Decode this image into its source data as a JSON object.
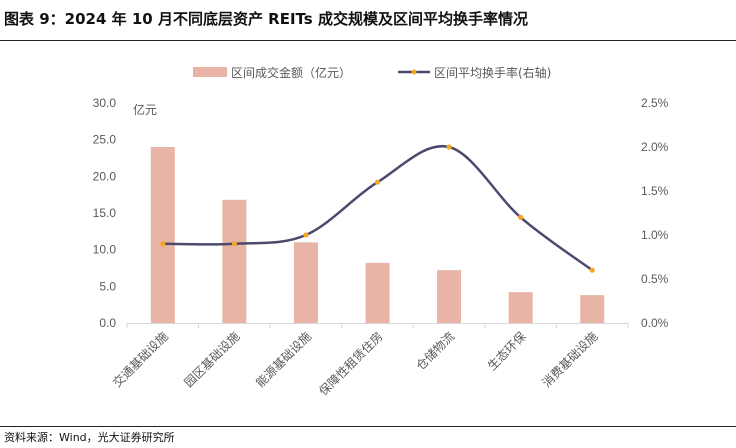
{
  "title": "图表 9：2024 年 10 月不同底层资产 REITs 成交规模及区间平均换手率情况",
  "source": "资料来源：Wind，光大证券研究所",
  "chart_data": {
    "type": "bar+line",
    "title": "",
    "categories": [
      "交通基础设施",
      "园区基础设施",
      "能源基础设施",
      "保障性租赁住房",
      "仓储物流",
      "生态环保",
      "消费基础设施"
    ],
    "series": [
      {
        "name": "区间成交金额（亿元）",
        "type": "bar",
        "axis": "left",
        "color": "#E8B4A6",
        "values": [
          24.0,
          16.8,
          11.0,
          8.2,
          7.2,
          4.2,
          3.8
        ]
      },
      {
        "name": "区间平均换手率(右轴)",
        "type": "line",
        "axis": "right",
        "color": "#4B4A6E",
        "marker_color": "#F5A623",
        "values": [
          0.9,
          0.9,
          1.0,
          1.6,
          2.0,
          1.2,
          0.6
        ]
      }
    ],
    "left_axis": {
      "unit_label": "亿元",
      "ylim": [
        0,
        30
      ],
      "ticks": [
        "0.0",
        "5.0",
        "10.0",
        "15.0",
        "20.0",
        "25.0",
        "30.0"
      ]
    },
    "right_axis": {
      "ylim": [
        0,
        2.5
      ],
      "ticks": [
        "0.0%",
        "0.5%",
        "1.0%",
        "1.5%",
        "2.0%",
        "2.5%"
      ]
    },
    "legend_position": "top",
    "grid": false
  }
}
